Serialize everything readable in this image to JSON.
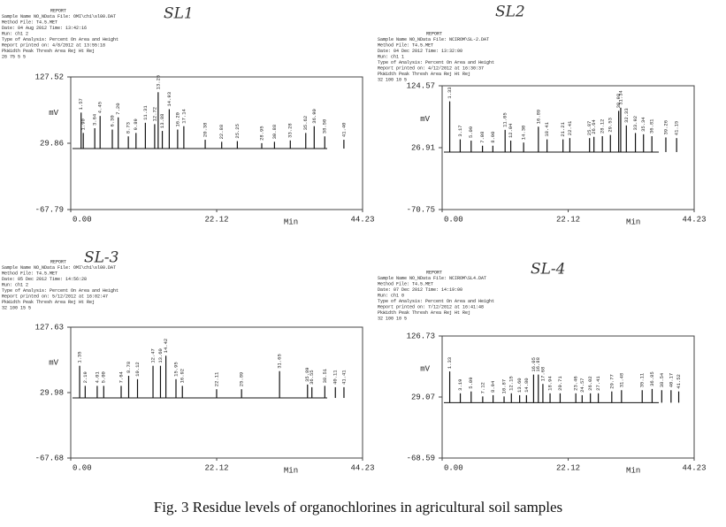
{
  "chart_data": [
    {
      "type": "line",
      "title": "SL1",
      "xlabel": "Min",
      "ylabel": "mV",
      "report": [
        "REPORT",
        "Sample Name NO_NData File: OMI\\ch1\\sl00.DAT",
        "Method File: T4.5.MET",
        "Date: 04 Aug 2012 Time: 13:42:16",
        "Run: ch1 2",
        "Type of Analysis: Percent On Area and Height",
        "Report printed on: 4/8/2012 at 13:55:18",
        "PkWidth Peak Thresh Area Rej Ht Rej",
        "26 75 5 5"
      ],
      "xlim": [
        0,
        44.23
      ],
      "xticks": [
        {
          "value": 0,
          "label": "0.00"
        },
        22.12,
        44.23
      ],
      "ylim": [
        -67.79,
        127.52
      ],
      "yticks": [
        127.52,
        29.86,
        -67.79
      ],
      "baseline": 22,
      "series": [
        {
          "color": "#111111",
          "x": [
            1.57,
            1.9,
            3.64,
            4.45,
            6.3,
            7.2,
            8.73,
            9.89,
            11.31,
            12.72,
            13.25,
            13.88,
            14.93,
            16.2,
            17.14,
            20.38,
            22.88,
            25.25,
            28.95,
            30.88,
            33.28,
            35.62,
            36.9,
            38.5,
            41.4
          ],
          "values": [
            75,
            45,
            52,
            70,
            50,
            68,
            40,
            45,
            60,
            58,
            105,
            48,
            80,
            50,
            55,
            35,
            32,
            33,
            30,
            32,
            34,
            45,
            55,
            40,
            35
          ],
          "peak_labels": [
            "1.57",
            "1.90",
            "3.64",
            "4.45",
            "6.30",
            "7.20",
            "8.73",
            "9.89",
            "11.31",
            "12.72",
            "13.25",
            "13.88",
            "14.93",
            "16.20",
            "17.14",
            "20.38",
            "22.88",
            "25.25",
            "28.95",
            "30.88",
            "33.28",
            "35.62",
            "36.90",
            "38.50",
            "41.40"
          ]
        }
      ]
    },
    {
      "type": "line",
      "title": "SL2",
      "xlabel": "Min",
      "ylabel": "mV",
      "report": [
        "REPORT",
        "Sample Name NO_NData File: NCIROM\\SL-2.DAT",
        "Method File: T4.5.MET",
        "Date: 04 Dec 2012 Time: 13:32:00",
        "Run: ch1 1",
        "Type of Analysis: Percent On Area and Height",
        "Report printed on: 4/12/2012 at 16:30:37",
        "PkWidth Peak Thresh Area Rej Ht Rej",
        "32 100 10 5"
      ],
      "xlim": [
        0,
        44.23
      ],
      "xticks": [
        {
          "value": 0,
          "label": "0.00"
        },
        22.12,
        44.23
      ],
      "ylim": [
        -70.75,
        124.57
      ],
      "yticks": [
        124.57,
        26.91,
        -70.75
      ],
      "baseline": 20,
      "series": [
        {
          "color": "#111111",
          "x": [
            1.33,
            3.17,
            5.09,
            7.08,
            8.9,
            11.05,
            12.04,
            14.3,
            16.89,
            18.41,
            21.21,
            22.41,
            25.87,
            26.64,
            28.12,
            29.53,
            30.98,
            31.34,
            32.33,
            33.92,
            35.34,
            36.81,
            39.26,
            41.15
          ],
          "values": [
            100,
            40,
            38,
            30,
            30,
            55,
            38,
            35,
            60,
            40,
            40,
            42,
            42,
            44,
            45,
            47,
            85,
            90,
            62,
            50,
            48,
            45,
            43,
            42
          ],
          "peak_labels": [
            "1.33",
            "3.17",
            "5.09",
            "7.08",
            "8.90",
            "11.05",
            "12.04",
            "14.30",
            "16.89",
            "18.41",
            "21.21",
            "22.41",
            "25.87",
            "26.64",
            "28.12",
            "29.53",
            "30.98",
            "31.34",
            "32.33",
            "33.92",
            "35.34",
            "36.81",
            "39.26",
            "41.15"
          ]
        }
      ]
    },
    {
      "type": "line",
      "title": "SL-3",
      "xlabel": "Min",
      "ylabel": "mV",
      "report": [
        "REPORT",
        "Sample Name NO_NData File: OMI\\ch1\\sl00.DAT",
        "Method File: T4.5.MET",
        "Date: 05 Dec 2012 Time: 14:56:28",
        "Run: ch1 2",
        "Type of Analysis: Percent On Area and Height",
        "Report printed on: 5/12/2012 at 16:02:47",
        "PkWidth Peak Thresh Area Rej Ht Rej",
        "32 100 15 5"
      ],
      "xlim": [
        0,
        44.23
      ],
      "xticks": [
        {
          "value": 0,
          "label": "0.00"
        },
        22.12,
        44.23
      ],
      "ylim": [
        -67.68,
        127.63
      ],
      "yticks": [
        127.63,
        29.98,
        -67.68
      ],
      "baseline": 22,
      "series": [
        {
          "color": "#111111",
          "x": [
            1.35,
            2.19,
            4.01,
            5,
            7.64,
            8.78,
            10.12,
            12.47,
            13.6,
            14.42,
            15.95,
            16.92,
            22.11,
            25.89,
            31.65,
            35.89,
            36.55,
            38.51,
            40.11,
            41.41
          ],
          "values": [
            70,
            40,
            40,
            40,
            40,
            55,
            50,
            70,
            70,
            85,
            50,
            40,
            35,
            35,
            62,
            42,
            38,
            40,
            38,
            38
          ],
          "peak_labels": [
            "1.35",
            "2.19",
            "4.01",
            "5.00",
            "7.64",
            "8.78",
            "10.12",
            "12.47",
            "13.60",
            "14.42",
            "15.95",
            "16.92",
            "22.11",
            "25.89",
            "31.65",
            "35.89",
            "36.55",
            "38.51",
            "40.11",
            "41.41"
          ]
        }
      ]
    },
    {
      "type": "line",
      "title": "SL-4",
      "xlabel": "Min",
      "ylabel": "mV",
      "report": [
        "REPORT",
        "Sample Name NO_NData File: NCIROM\\SL4.DAT",
        "Method File: T4.5.MET",
        "Date: 07 Dec 2012 Time: 14:19:00",
        "Run: ch1 0",
        "Type of Analysis: Percent On Area and Height",
        "Report printed on: 7/12/2012 at 16:41:48",
        "PkWidth Peak Thresh Area Rej Ht Rej",
        "32 100 10 5"
      ],
      "xlim": [
        0,
        44.23
      ],
      "xticks": [
        {
          "value": 0,
          "label": "0.00"
        },
        22.12,
        44.23
      ],
      "ylim": [
        -68.59,
        126.73
      ],
      "yticks": [
        126.73,
        29.07,
        -68.59
      ],
      "baseline": 20,
      "series": [
        {
          "color": "#111111",
          "x": [
            1.33,
            3.19,
            5.09,
            7.12,
            8.94,
            10.87,
            12.15,
            13.6,
            14.8,
            16.05,
            16.88,
            17.68,
            18.94,
            20.71,
            23.46,
            24.57,
            26.02,
            27.41,
            29.77,
            31.48,
            35.11,
            36.85,
            38.54,
            40.17,
            41.52
          ],
          "values": [
            70,
            35,
            38,
            30,
            32,
            30,
            35,
            32,
            32,
            65,
            65,
            50,
            35,
            35,
            35,
            32,
            35,
            35,
            38,
            40,
            40,
            42,
            40,
            40,
            38
          ],
          "peak_labels": [
            "1.33",
            "3.19",
            "5.09",
            "7.12",
            "8.94",
            "10.87",
            "12.15",
            "13.60",
            "14.80",
            "16.05",
            "16.88",
            "17.68",
            "18.94",
            "20.71",
            "23.46",
            "24.57",
            "26.02",
            "27.41",
            "29.77",
            "31.48",
            "35.11",
            "36.85",
            "38.54",
            "40.17",
            "41.52"
          ]
        }
      ]
    }
  ],
  "caption": "Fig. 3 Residue levels of organochlorines in agricultural soil samples"
}
